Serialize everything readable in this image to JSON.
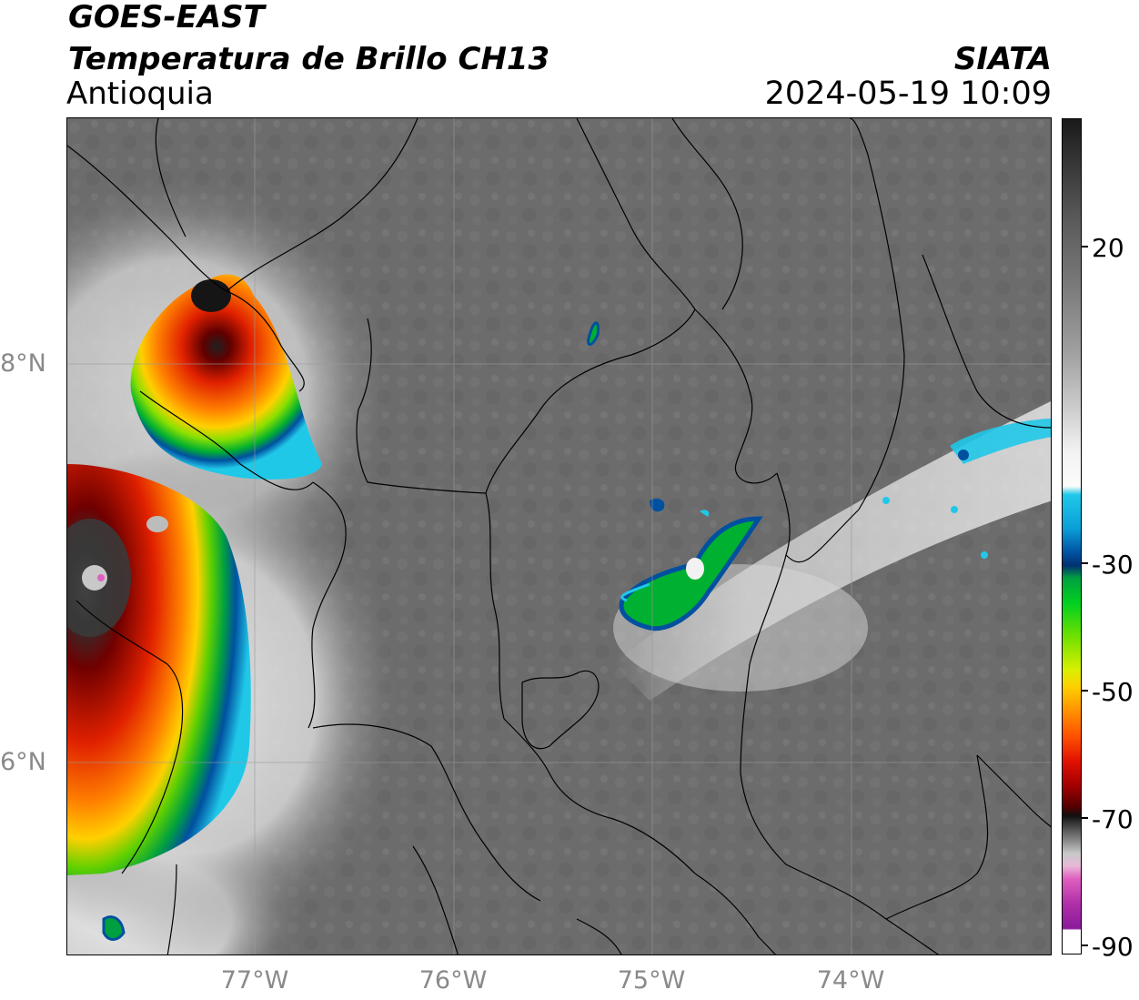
{
  "header": {
    "line1": "GOES-EAST",
    "line2": "Temperatura de Brillo CH13",
    "region": "Antioquia",
    "org": "SIATA",
    "timestamp": "2024-05-19 10:09"
  },
  "axes": {
    "lat_labels": [
      "8°N",
      "6°N"
    ],
    "lon_labels": [
      "77°W",
      "76°W",
      "75°W",
      "74°W"
    ]
  },
  "colorbar": {
    "tick_labels": [
      "20",
      "-30",
      "-50",
      "-70",
      "-90"
    ]
  },
  "colors": {
    "background_gray": "#6e6e6e",
    "border": "#000000"
  }
}
